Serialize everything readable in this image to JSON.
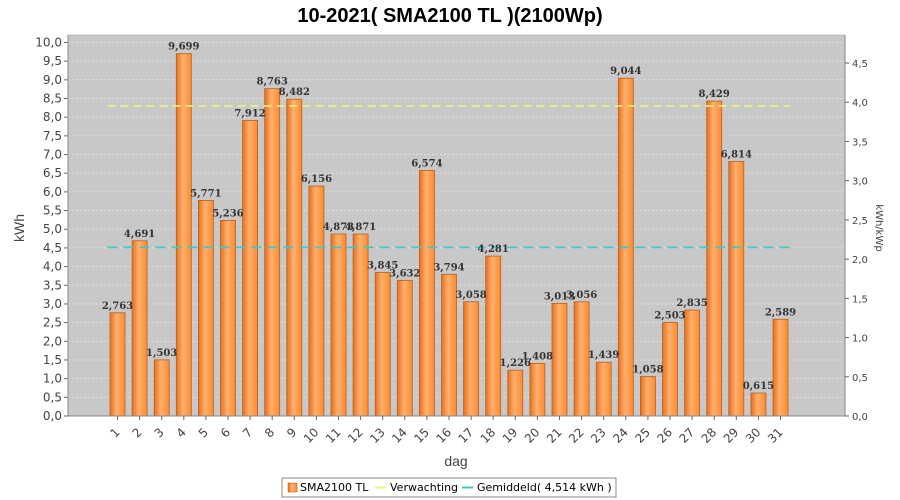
{
  "chart_data": {
    "type": "bar",
    "title": "10-2021( SMA2100 TL )(2100Wp)",
    "xlabel": "dag",
    "ylabel": "kWh",
    "y2label": "kWh/kWp",
    "ylim": [
      0,
      10.2
    ],
    "y2lim": [
      0,
      4.857
    ],
    "yticks": [
      "0,0",
      "0,5",
      "1,0",
      "1,5",
      "2,0",
      "2,5",
      "3,0",
      "3,5",
      "4,0",
      "4,5",
      "5,0",
      "5,5",
      "6,0",
      "6,5",
      "7,0",
      "7,5",
      "8,0",
      "8,5",
      "9,0",
      "9,5",
      "10,0"
    ],
    "y2ticks": [
      "0,0",
      "0,5",
      "1,0",
      "1,5",
      "2,0",
      "2,5",
      "3,0",
      "3,5",
      "4,0",
      "4,5"
    ],
    "categories": [
      "1",
      "2",
      "3",
      "4",
      "5",
      "6",
      "7",
      "8",
      "9",
      "10",
      "11",
      "12",
      "13",
      "14",
      "15",
      "16",
      "17",
      "18",
      "19",
      "20",
      "21",
      "22",
      "23",
      "24",
      "25",
      "26",
      "27",
      "28",
      "29",
      "30",
      "31"
    ],
    "series": [
      {
        "name": "SMA2100 TL",
        "values": [
          2.763,
          4.691,
          1.503,
          9.699,
          5.771,
          5.236,
          7.912,
          8.763,
          8.482,
          6.156,
          4.873,
          4.871,
          3.845,
          3.632,
          6.574,
          3.794,
          3.058,
          4.281,
          1.226,
          1.408,
          3.013,
          3.056,
          1.439,
          9.044,
          1.058,
          2.503,
          2.835,
          8.429,
          6.814,
          0.615,
          2.589
        ],
        "labels": [
          "2,763",
          "4,691",
          "1,503",
          "9,699",
          "5,771",
          "5,236",
          "7,912",
          "8,763",
          "8,482",
          "6,156",
          "4,873",
          "4,871",
          "3,845",
          "3,632",
          "6,574",
          "3,794",
          "3,058",
          "4,281",
          "1,226",
          "1,408",
          "3,013",
          "3,056",
          "1,439",
          "9,044",
          "1,058",
          "2,503",
          "2,835",
          "8,429",
          "6,814",
          "0,615",
          "2,589"
        ]
      }
    ],
    "expected": 8.3,
    "average": 4.514,
    "legend": [
      "SMA2100 TL",
      "Verwachting",
      "Gemiddeld( 4,514 kWh )"
    ],
    "colors": {
      "bar": "#ff9a3c",
      "bar_light": "#ffc48a",
      "bar_dark": "#e8701a",
      "expected": "#f2f27a",
      "average": "#40c8c8",
      "plot_bg": "#c8c8c8",
      "grid": "#e6e6e6"
    }
  }
}
